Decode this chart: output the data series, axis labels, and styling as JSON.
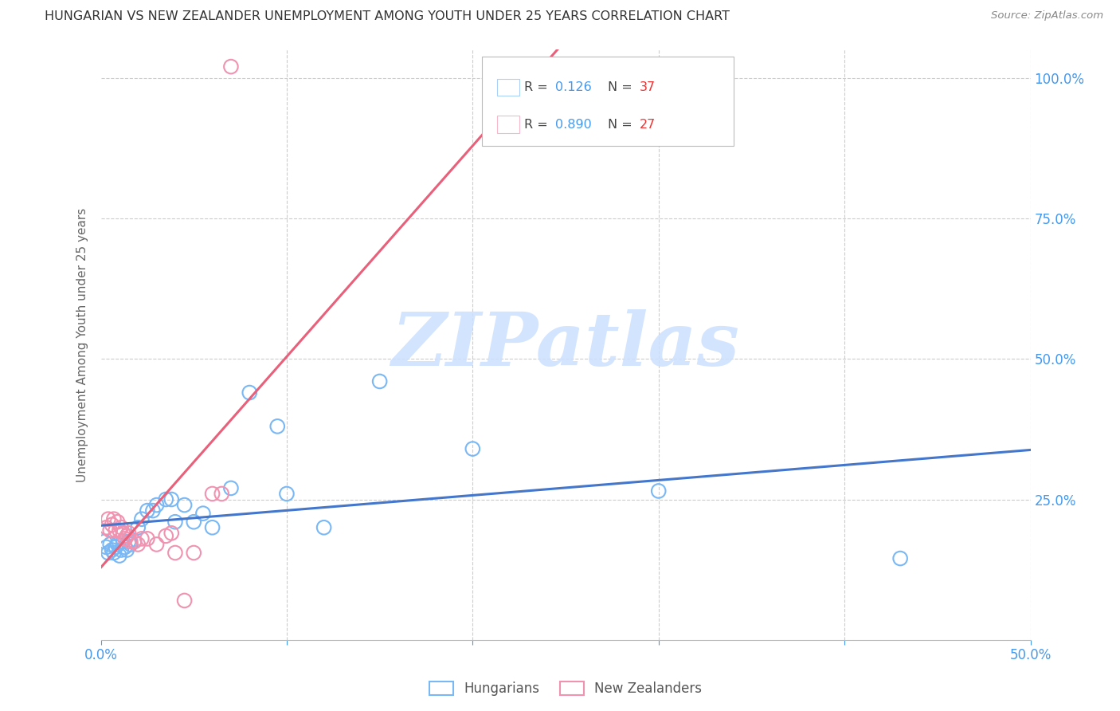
{
  "title": "HUNGARIAN VS NEW ZEALANDER UNEMPLOYMENT AMONG YOUTH UNDER 25 YEARS CORRELATION CHART",
  "source": "Source: ZipAtlas.com",
  "ylabel": "Unemployment Among Youth under 25 years",
  "xlim": [
    0.0,
    0.5
  ],
  "ylim": [
    0.0,
    1.05
  ],
  "xticks": [
    0.0,
    0.1,
    0.2,
    0.3,
    0.4,
    0.5
  ],
  "xticklabels": [
    "0.0%",
    "",
    "",
    "",
    "",
    "50.0%"
  ],
  "yticks": [
    0.0,
    0.25,
    0.5,
    0.75,
    1.0
  ],
  "yticklabels_right": [
    "",
    "25.0%",
    "50.0%",
    "75.0%",
    "100.0%"
  ],
  "legend_R_blue": "0.126",
  "legend_N_blue": "37",
  "legend_R_pink": "0.890",
  "legend_N_pink": "27",
  "hungarian_x": [
    0.002,
    0.003,
    0.004,
    0.005,
    0.006,
    0.007,
    0.008,
    0.009,
    0.01,
    0.011,
    0.012,
    0.013,
    0.014,
    0.015,
    0.016,
    0.018,
    0.02,
    0.022,
    0.025,
    0.028,
    0.03,
    0.035,
    0.038,
    0.04,
    0.045,
    0.05,
    0.055,
    0.06,
    0.07,
    0.08,
    0.095,
    0.1,
    0.12,
    0.15,
    0.2,
    0.3,
    0.43
  ],
  "hungarian_y": [
    0.175,
    0.165,
    0.155,
    0.17,
    0.16,
    0.155,
    0.165,
    0.17,
    0.15,
    0.16,
    0.175,
    0.165,
    0.16,
    0.175,
    0.17,
    0.175,
    0.2,
    0.215,
    0.23,
    0.23,
    0.24,
    0.25,
    0.25,
    0.21,
    0.24,
    0.21,
    0.225,
    0.2,
    0.27,
    0.44,
    0.38,
    0.26,
    0.2,
    0.46,
    0.34,
    0.265,
    0.145
  ],
  "nz_x": [
    0.003,
    0.004,
    0.005,
    0.006,
    0.007,
    0.008,
    0.009,
    0.01,
    0.011,
    0.012,
    0.013,
    0.014,
    0.015,
    0.016,
    0.018,
    0.02,
    0.022,
    0.025,
    0.03,
    0.035,
    0.038,
    0.04,
    0.045,
    0.05,
    0.06,
    0.065,
    0.07
  ],
  "nz_y": [
    0.2,
    0.215,
    0.195,
    0.205,
    0.215,
    0.195,
    0.21,
    0.195,
    0.2,
    0.19,
    0.18,
    0.185,
    0.19,
    0.175,
    0.175,
    0.17,
    0.18,
    0.18,
    0.17,
    0.185,
    0.19,
    0.155,
    0.07,
    0.155,
    0.26,
    0.26,
    1.02
  ],
  "blue_color": "#7ab8f5",
  "pink_color": "#f093b0",
  "blue_line_color": "#4477cc",
  "pink_line_color": "#e8607a",
  "legend_blue_box": "#a8d0f8",
  "legend_pink_box": "#f8b8cc",
  "right_axis_color": "#4499ee",
  "watermark_text": "ZIPatlas",
  "watermark_color": "#cce0ff",
  "background_color": "#ffffff",
  "grid_color": "#cccccc",
  "title_color": "#333333",
  "source_color": "#888888",
  "ylabel_color": "#666666",
  "tick_label_color": "#4499ee"
}
